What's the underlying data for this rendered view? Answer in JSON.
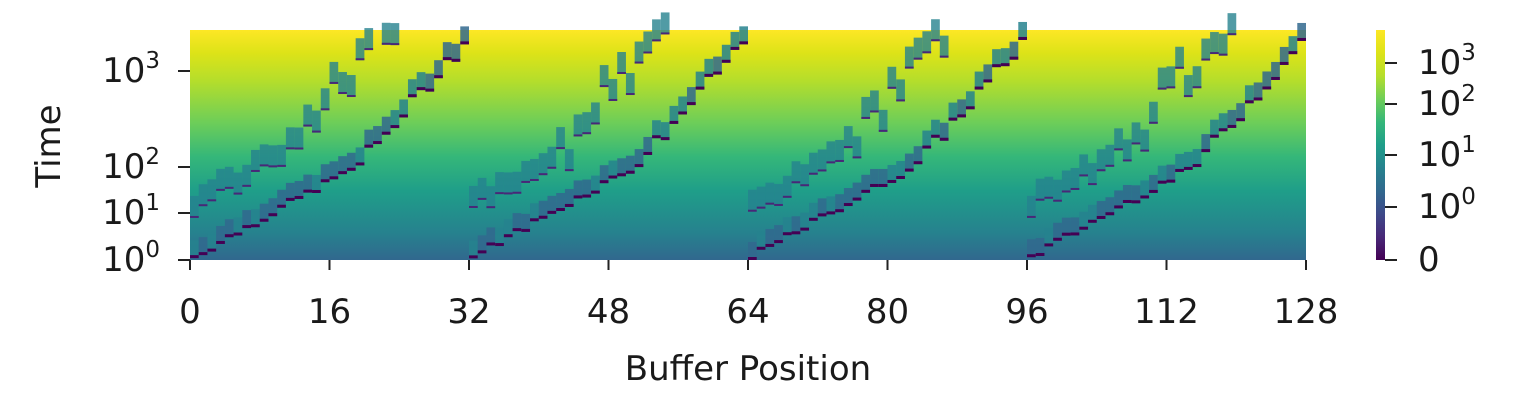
{
  "chart_data": {
    "type": "heatmap",
    "title": "",
    "xlabel": "Buffer Position",
    "ylabel": "Time",
    "x_ticks": [
      "0",
      "16",
      "32",
      "48",
      "64",
      "80",
      "96",
      "112",
      "128"
    ],
    "x_tick_values": [
      0,
      16,
      32,
      48,
      64,
      80,
      96,
      112,
      128
    ],
    "x_range": [
      0,
      128
    ],
    "y_scale": "symlog",
    "y_ticks": [
      {
        "value": 1,
        "base": "10",
        "exp": "0"
      },
      {
        "value": 10,
        "base": "10",
        "exp": "1"
      },
      {
        "value": 100,
        "base": "10",
        "exp": "2"
      },
      {
        "value": 1000,
        "base": "10",
        "exp": "3"
      }
    ],
    "y_range": [
      1,
      3000
    ],
    "colormap": "viridis",
    "color_scale": "symlog",
    "colorbar_ticks": [
      {
        "value": 0,
        "base": "0",
        "exp": ""
      },
      {
        "value": 1,
        "base": "10",
        "exp": "0"
      },
      {
        "value": 10,
        "base": "10",
        "exp": "1"
      },
      {
        "value": 100,
        "base": "10",
        "exp": "2"
      },
      {
        "value": 1000,
        "base": "10",
        "exp": "3"
      }
    ],
    "color_range": [
      0,
      3000
    ],
    "grid": false,
    "legend": "colorbar right"
  }
}
